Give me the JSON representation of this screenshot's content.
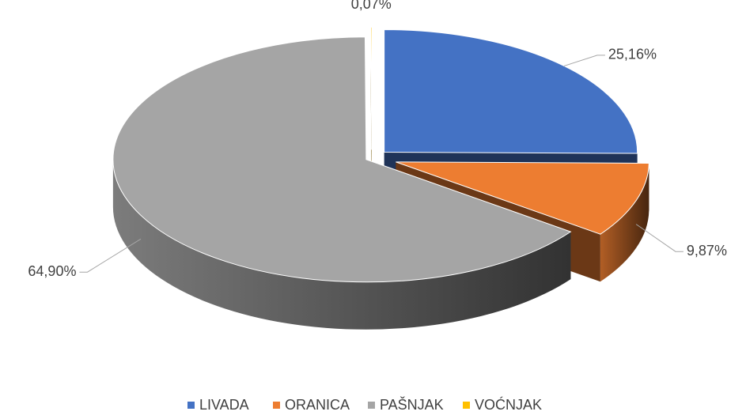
{
  "chart_data": {
    "type": "pie",
    "categories": [
      "LIVADA",
      "ORANICA",
      "PAŠNJAK",
      "VOĆNJAK"
    ],
    "values": [
      25.16,
      9.87,
      64.9,
      0.07
    ],
    "value_labels": [
      "25,16%",
      "9,87%",
      "64,90%",
      "0,07%"
    ],
    "colors": [
      "#4472c4",
      "#ed7d31",
      "#a5a5a5",
      "#ffc000"
    ],
    "legend": "bottom"
  }
}
